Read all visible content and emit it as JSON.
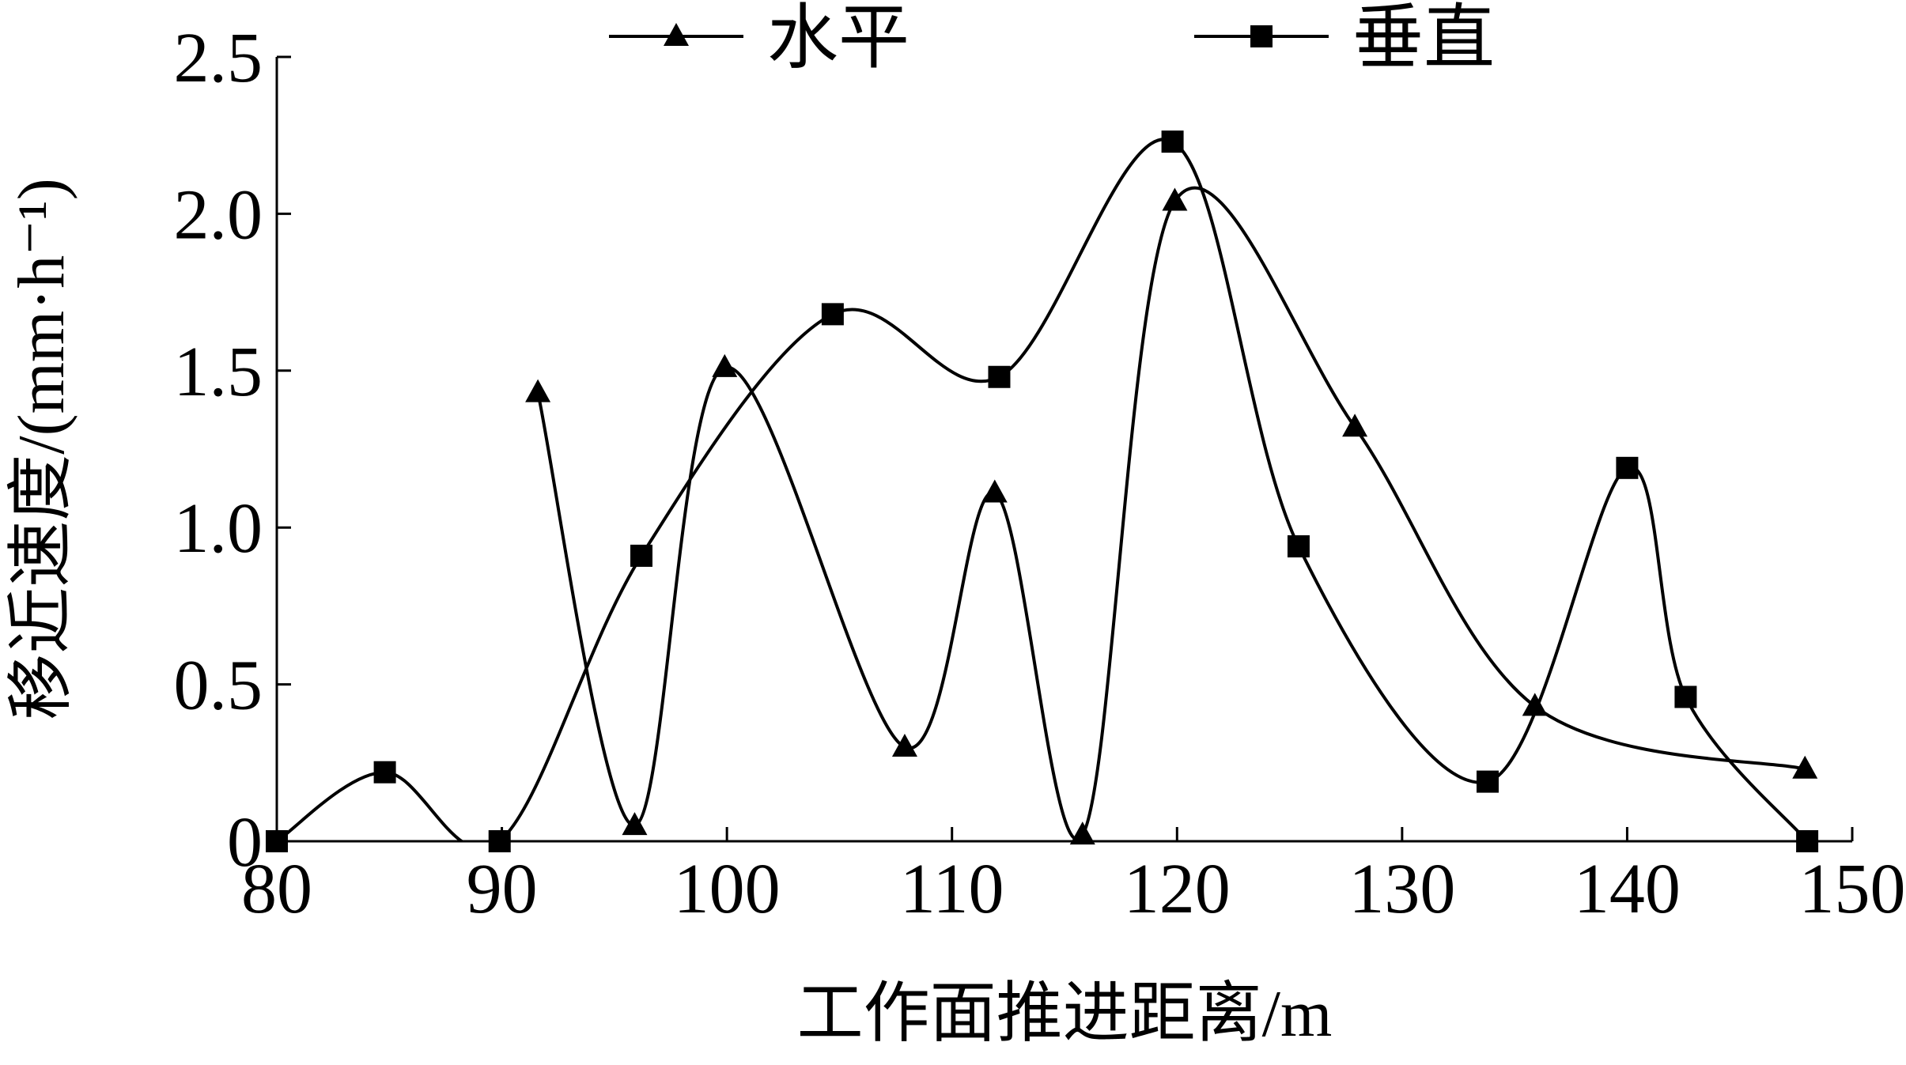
{
  "chart_data": {
    "type": "line",
    "xlabel": "工作面推进距离/m",
    "ylabel": "移近速度/(mm·h⁻¹)",
    "xlim": [
      80,
      150
    ],
    "xticks": [
      80,
      90,
      100,
      110,
      120,
      130,
      140,
      150
    ],
    "ylim": [
      0,
      2.5
    ],
    "yticks": [
      0,
      0.5,
      {
        "value": 1,
        "label": "1.0"
      },
      1.5,
      {
        "value": 2,
        "label": "2.0"
      },
      2.5
    ],
    "legend": "top",
    "series": [
      {
        "name": "水平",
        "color": "#000000",
        "marker": "triangle",
        "x": [
          91.6,
          95.9,
          99.9,
          107.9,
          111.9,
          115.8,
          119.9,
          127.9,
          135.9,
          147.9
        ],
        "values": [
          1.43,
          0.05,
          1.51,
          0.3,
          1.11,
          0.02,
          2.04,
          1.32,
          0.43,
          0.23
        ]
      },
      {
        "name": "垂直",
        "color": "#000000",
        "marker": "square",
        "x": [
          80,
          84.8,
          89.9,
          96.2,
          104.7,
          112.1,
          119.8,
          125.4,
          133.8,
          140.0,
          142.6,
          148.0
        ],
        "values": [
          0,
          0.22,
          0,
          0.91,
          1.68,
          1.48,
          2.23,
          0.94,
          0.19,
          1.19,
          0.46,
          0
        ]
      }
    ]
  }
}
